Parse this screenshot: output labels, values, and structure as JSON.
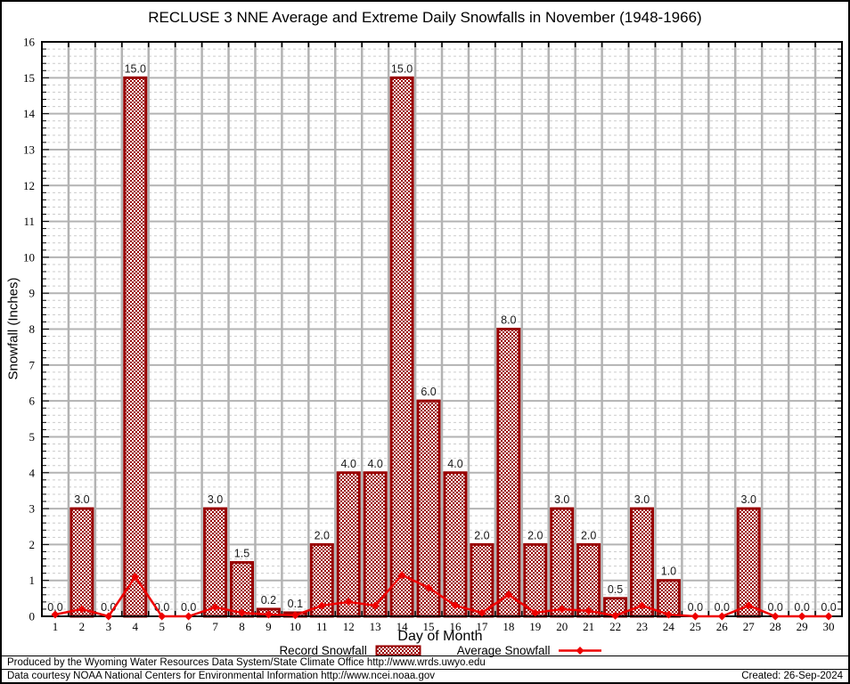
{
  "chart_data": {
    "type": "bar",
    "title": "RECLUSE 3 NNE Average and Extreme Daily Snowfalls in November (1948-1966)",
    "xlabel": "Day of Month",
    "ylabel": "Snowfall (Inches)",
    "ylim": [
      0,
      16
    ],
    "y_major_step": 1,
    "y_minor_step": 0.2,
    "y_ticks": [
      0,
      1,
      2,
      3,
      4,
      5,
      6,
      7,
      8,
      9,
      10,
      11,
      12,
      13,
      14,
      15,
      16
    ],
    "grid": true,
    "legend_position": "bottom",
    "categories": [
      1,
      2,
      3,
      4,
      5,
      6,
      7,
      8,
      9,
      10,
      11,
      12,
      13,
      14,
      15,
      16,
      17,
      18,
      19,
      20,
      21,
      22,
      23,
      24,
      25,
      26,
      27,
      28,
      29,
      30
    ],
    "series": [
      {
        "name": "Record Snowfall",
        "type": "bar",
        "values": [
          0,
          3,
          0,
          15,
          0,
          0,
          3,
          1.5,
          0.2,
          0.1,
          2,
          4,
          4,
          15,
          6,
          4,
          2,
          8,
          2,
          3,
          2,
          0.5,
          3,
          1,
          0,
          0,
          3,
          0,
          0,
          0
        ],
        "value_labels": [
          "0.0",
          "3.0",
          "0.0",
          "15.0",
          "0.0",
          "0.0",
          "3.0",
          "1.5",
          "0.2",
          "0.1",
          "2.0",
          "4.0",
          "4.0",
          "15.0",
          "6.0",
          "4.0",
          "2.0",
          "8.0",
          "2.0",
          "3.0",
          "2.0",
          "0.5",
          "3.0",
          "1.0",
          "0.0",
          "0.0",
          "3.0",
          "0.0",
          "0.0",
          "0.0"
        ]
      },
      {
        "name": "Average Snowfall",
        "type": "line",
        "values": [
          0.05,
          0.2,
          0,
          1.1,
          0,
          0,
          0.25,
          0.1,
          0.05,
          0.03,
          0.3,
          0.4,
          0.3,
          1.15,
          0.8,
          0.3,
          0.1,
          0.6,
          0.1,
          0.2,
          0.15,
          0.02,
          0.3,
          0.05,
          0,
          0,
          0.3,
          0,
          0,
          0
        ]
      }
    ]
  },
  "colors": {
    "bar_red": "#990000",
    "line_red": "#ee0000",
    "grid_major": "#b3b3b3",
    "grid_minor": "#cccccc",
    "frame": "#000000",
    "label_text": "#1a1a1a"
  },
  "footer": {
    "line1": "Produced by the Wyoming Water Resources Data System/State Climate Office http://www.wrds.uwyo.edu",
    "line2": "Data courtesy NOAA National Centers for Environmental Information http://www.ncei.noaa.gov",
    "created": "Created: 26-Sep-2024"
  }
}
